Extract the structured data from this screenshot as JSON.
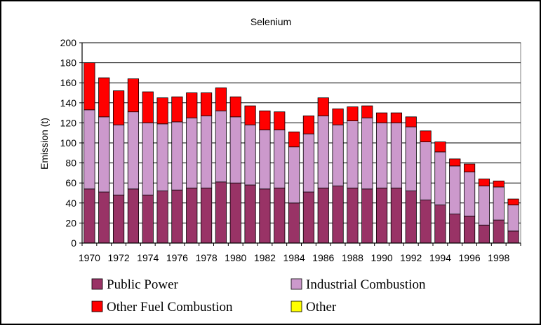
{
  "chart_data": {
    "type": "bar",
    "stacked": true,
    "title": "Selenium",
    "ylabel": "Emission (t)",
    "xlabel": "",
    "ylim": [
      0,
      200
    ],
    "yticks": [
      0,
      20,
      40,
      60,
      80,
      100,
      120,
      140,
      160,
      180,
      200
    ],
    "grid": true,
    "legend_position": "bottom",
    "categories": [
      "1970",
      "1971",
      "1972",
      "1973",
      "1974",
      "1975",
      "1976",
      "1977",
      "1978",
      "1979",
      "1980",
      "1981",
      "1982",
      "1983",
      "1984",
      "1985",
      "1986",
      "1987",
      "1988",
      "1989",
      "1990",
      "1991",
      "1992",
      "1993",
      "1994",
      "1995",
      "1996",
      "1997",
      "1998",
      "1999"
    ],
    "xtick_labels": [
      "1970",
      "1972",
      "1974",
      "1976",
      "1978",
      "1980",
      "1982",
      "1984",
      "1986",
      "1988",
      "1990",
      "1992",
      "1994",
      "1996",
      "1998"
    ],
    "series": [
      {
        "name": "Public Power",
        "color": "#993366",
        "values": [
          54,
          51,
          48,
          54,
          48,
          52,
          53,
          55,
          55,
          61,
          60,
          58,
          54,
          55,
          40,
          51,
          55,
          57,
          55,
          54,
          55,
          55,
          52,
          43,
          38,
          29,
          27,
          18,
          23,
          12
        ]
      },
      {
        "name": "Industrial Combustion",
        "color": "#cc99cc",
        "values": [
          79,
          75,
          70,
          77,
          72,
          67,
          68,
          70,
          72,
          71,
          66,
          60,
          59,
          58,
          56,
          58,
          72,
          61,
          67,
          71,
          65,
          65,
          64,
          58,
          53,
          48,
          44,
          39,
          33,
          26
        ]
      },
      {
        "name": "Other Fuel Combustion",
        "color": "#ff0000",
        "values": [
          47,
          39,
          34,
          33,
          31,
          26,
          25,
          25,
          23,
          23,
          20,
          19,
          19,
          18,
          15,
          18,
          18,
          16,
          14,
          12,
          10,
          10,
          10,
          11,
          10,
          7,
          8,
          7,
          6,
          6
        ]
      },
      {
        "name": "Other",
        "color": "#ffff00",
        "values": [
          0,
          0,
          0,
          0,
          0,
          0,
          0,
          0,
          0,
          0,
          0,
          0,
          0,
          0,
          0,
          0,
          0,
          0,
          0,
          0,
          0,
          0,
          0,
          0,
          0,
          0,
          0,
          0,
          0,
          0
        ]
      }
    ]
  }
}
